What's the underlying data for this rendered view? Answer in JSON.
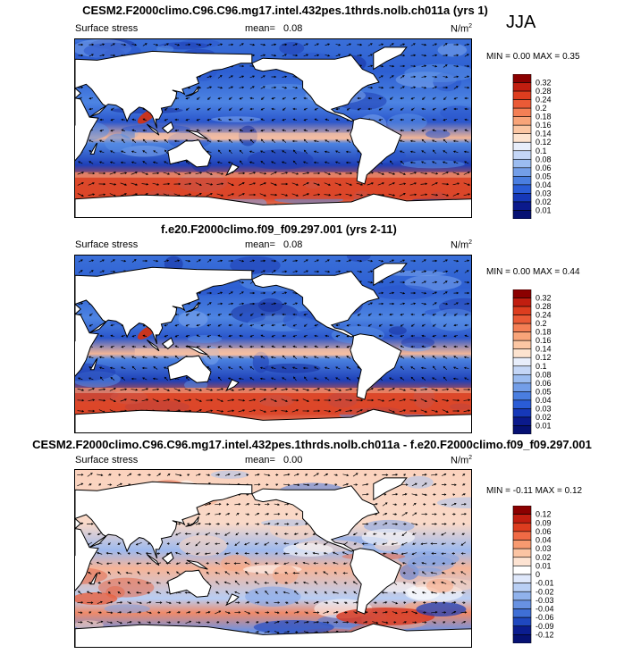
{
  "season": "JJA",
  "panels": [
    {
      "title": "CESM2.F2000climo.C96.C96.mg17.intel.432pes.1thrds.nolb.ch011a (yrs 1)",
      "variable": "Surface stress",
      "mean_label": "mean=",
      "mean": "0.08",
      "units_base": "N/m",
      "units_sup": "2",
      "min_label": "MIN =",
      "min": "0.00",
      "max_label": "MAX =",
      "max": "0.35"
    },
    {
      "title": "f.e20.F2000climo.f09_f09.297.001 (yrs 2-11)",
      "variable": "Surface stress",
      "mean_label": "mean=",
      "mean": "0.08",
      "units_base": "N/m",
      "units_sup": "2",
      "min_label": "MIN =",
      "min": "0.00",
      "max_label": "MAX =",
      "max": "0.44"
    },
    {
      "title": "CESM2.F2000climo.C96.C96.mg17.intel.432pes.1thrds.nolb.ch011a - f.e20.F2000climo.f09_f09.297.001",
      "variable": "Surface stress",
      "mean_label": "mean=",
      "mean": "0.00",
      "units_base": "N/m",
      "units_sup": "2",
      "min_label": "MIN =",
      "min": "-0.11",
      "max_label": "MAX =",
      "max": "0.12"
    }
  ],
  "chart_data": [
    {
      "type": "heatmap",
      "title": "CESM2.F2000climo.C96.C96.mg17.intel.432pes.1thrds.nolb.ch011a (yrs 1)",
      "variable": "Surface stress",
      "units": "N/m2",
      "mean": 0.08,
      "min": 0.0,
      "max": 0.35,
      "colorbar_levels": [
        "0.32",
        "0.28",
        "0.24",
        "0.2",
        "0.18",
        "0.16",
        "0.14",
        "0.12",
        "0.1",
        "0.08",
        "0.06",
        "0.05",
        "0.04",
        "0.03",
        "0.02",
        "0.01"
      ],
      "colorbar_colors": [
        "#8b0000",
        "#c11e10",
        "#dd3d1f",
        "#ea5a36",
        "#f47f55",
        "#f8a479",
        "#fbc6a3",
        "#fde3cf",
        "#e8eefb",
        "#c4d6f6",
        "#9bbcf0",
        "#739ee8",
        "#4a7ee0",
        "#2a5cd6",
        "#1638b8",
        "#0b1a8c",
        "#061173"
      ]
    },
    {
      "type": "heatmap",
      "title": "f.e20.F2000climo.f09_f09.297.001 (yrs 2-11)",
      "variable": "Surface stress",
      "units": "N/m2",
      "mean": 0.08,
      "min": 0.0,
      "max": 0.44,
      "colorbar_levels": [
        "0.32",
        "0.28",
        "0.24",
        "0.2",
        "0.18",
        "0.16",
        "0.14",
        "0.12",
        "0.1",
        "0.08",
        "0.06",
        "0.05",
        "0.04",
        "0.03",
        "0.02",
        "0.01"
      ],
      "colorbar_colors": [
        "#8b0000",
        "#c11e10",
        "#dd3d1f",
        "#ea5a36",
        "#f47f55",
        "#f8a479",
        "#fbc6a3",
        "#fde3cf",
        "#e8eefb",
        "#c4d6f6",
        "#9bbcf0",
        "#739ee8",
        "#4a7ee0",
        "#2a5cd6",
        "#1638b8",
        "#0b1a8c",
        "#061173"
      ]
    },
    {
      "type": "heatmap",
      "title": "CESM2.F2000climo.C96.C96.mg17.intel.432pes.1thrds.nolb.ch011a - f.e20.F2000climo.f09_f09.297.001",
      "variable": "Surface stress",
      "units": "N/m2",
      "mean": 0.0,
      "min": -0.11,
      "max": 0.12,
      "colorbar_levels": [
        "0.12",
        "0.09",
        "0.06",
        "0.04",
        "0.03",
        "0.02",
        "0.01",
        "0",
        "-0.01",
        "-0.02",
        "-0.03",
        "-0.04",
        "-0.06",
        "-0.09",
        "-0.12"
      ],
      "colorbar_colors": [
        "#8b0000",
        "#c11e10",
        "#dd3d1f",
        "#f06a45",
        "#f79a70",
        "#fbc4a3",
        "#fde3d2",
        "#ffffff",
        "#dfe8fb",
        "#b9cff4",
        "#90b2ec",
        "#6892e2",
        "#3f6fd6",
        "#1f48bf",
        "#0b1d8f",
        "#061173"
      ]
    }
  ],
  "colors": {
    "ocean_blue": "#3a6fd8",
    "ocean_dark": "#0f2a9e",
    "band_red": "#e2492b",
    "land": "#ffffff"
  }
}
